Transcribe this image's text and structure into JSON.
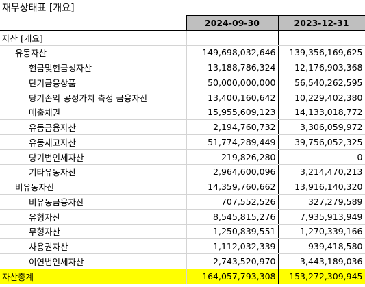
{
  "title": "재무상태표 [개요]",
  "header": {
    "col1": "2024-09-30",
    "col2": "2023-12-31"
  },
  "rows": [
    {
      "label": "자산 [개요]",
      "level": 0,
      "v1": "",
      "v2": ""
    },
    {
      "label": "유동자산",
      "level": 1,
      "v1": "149,698,032,646",
      "v2": "139,356,169,625"
    },
    {
      "label": "현금및현금성자산",
      "level": 2,
      "v1": "13,188,786,324",
      "v2": "12,176,903,368"
    },
    {
      "label": "단기금융상품",
      "level": 2,
      "v1": "50,000,000,000",
      "v2": "56,540,262,595"
    },
    {
      "label": "당기손익-공정가치 측정 금융자산",
      "level": 2,
      "v1": "13,400,160,642",
      "v2": "10,229,402,380"
    },
    {
      "label": "매출채권",
      "level": 2,
      "v1": "15,955,609,123",
      "v2": "14,133,018,772"
    },
    {
      "label": "유동금융자산",
      "level": 2,
      "v1": "2,194,760,732",
      "v2": "3,306,059,972"
    },
    {
      "label": "유동재고자산",
      "level": 2,
      "v1": "51,774,289,449",
      "v2": "39,756,052,325"
    },
    {
      "label": "당기법인세자산",
      "level": 2,
      "v1": "219,826,280",
      "v2": "0"
    },
    {
      "label": "기타유동자산",
      "level": 2,
      "v1": "2,964,600,096",
      "v2": "3,214,470,213"
    },
    {
      "label": "비유동자산",
      "level": 1,
      "v1": "14,359,760,662",
      "v2": "13,916,140,320"
    },
    {
      "label": "비유동금융자산",
      "level": 2,
      "v1": "707,552,526",
      "v2": "327,279,589"
    },
    {
      "label": "유형자산",
      "level": 2,
      "v1": "8,545,815,276",
      "v2": "7,935,913,949"
    },
    {
      "label": "무형자산",
      "level": 2,
      "v1": "1,250,839,551",
      "v2": "1,270,339,166"
    },
    {
      "label": "사용권자산",
      "level": 2,
      "v1": "1,112,032,339",
      "v2": "939,418,580"
    },
    {
      "label": "이연법인세자산",
      "level": 2,
      "v1": "2,743,520,970",
      "v2": "3,443,189,036"
    }
  ],
  "total": {
    "label": "자산총계",
    "v1": "164,057,793,308",
    "v2": "153,272,309,945",
    "highlight_color": "#ffff00"
  }
}
